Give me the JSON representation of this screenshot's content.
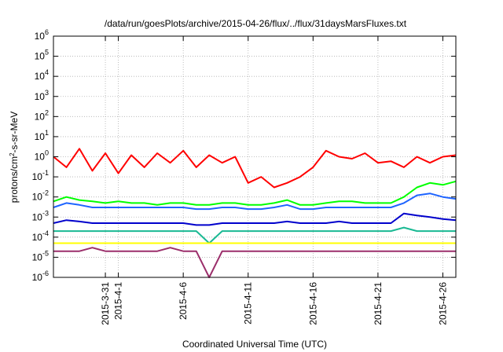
{
  "chart_data": {
    "type": "line",
    "title": "/data/run/goesPlots/archive/2015-04-26/flux/../flux/31daysMarsFluxes.txt",
    "xlabel": "Coordinated Universal Time (UTC)",
    "ylabel": {
      "base": "protons/cm",
      "sup": "2",
      "rest": "-s-sr-MeV"
    },
    "xlim": [
      "2015-03-27",
      "2015-04-27"
    ],
    "ylim": [
      1e-06,
      1000000.0
    ],
    "yscale": "log",
    "grid": true,
    "yticks": [
      {
        "base": "10",
        "exp": "6",
        "value": 1000000.0
      },
      {
        "base": "10",
        "exp": "5",
        "value": 100000.0
      },
      {
        "base": "10",
        "exp": "4",
        "value": 10000.0
      },
      {
        "base": "10",
        "exp": "3",
        "value": 1000.0
      },
      {
        "base": "10",
        "exp": "2",
        "value": 100.0
      },
      {
        "base": "10",
        "exp": "1",
        "value": 10.0
      },
      {
        "base": "10",
        "exp": "0",
        "value": 1.0
      },
      {
        "base": "10",
        "exp": "-1",
        "value": 0.1
      },
      {
        "base": "10",
        "exp": "-2",
        "value": 0.01
      },
      {
        "base": "10",
        "exp": "-3",
        "value": 0.001
      },
      {
        "base": "10",
        "exp": "-4",
        "value": 0.0001
      },
      {
        "base": "10",
        "exp": "-5",
        "value": 1e-05
      },
      {
        "base": "10",
        "exp": "-6",
        "value": 1e-06
      }
    ],
    "xticks": [
      {
        "date": "2015-03-31",
        "label": "2015-3-31"
      },
      {
        "date": "2015-04-01",
        "label": "2015-4-1"
      },
      {
        "date": "2015-04-06",
        "label": "2015-4-6"
      },
      {
        "date": "2015-04-11",
        "label": "2015-4-11"
      },
      {
        "date": "2015-04-16",
        "label": "2015-4-16"
      },
      {
        "date": "2015-04-21",
        "label": "2015-4-21"
      },
      {
        "date": "2015-04-26",
        "label": "2015-4-26"
      }
    ],
    "series": [
      {
        "color": "#ff0000",
        "x": [
          "2015-03-27",
          "2015-03-28",
          "2015-03-29",
          "2015-03-30",
          "2015-03-31",
          "2015-04-01",
          "2015-04-02",
          "2015-04-03",
          "2015-04-04",
          "2015-04-05",
          "2015-04-06",
          "2015-04-07",
          "2015-04-08",
          "2015-04-09",
          "2015-04-10",
          "2015-04-11",
          "2015-04-12",
          "2015-04-13",
          "2015-04-14",
          "2015-04-15",
          "2015-04-16",
          "2015-04-17",
          "2015-04-18",
          "2015-04-19",
          "2015-04-20",
          "2015-04-21",
          "2015-04-22",
          "2015-04-23",
          "2015-04-24",
          "2015-04-25",
          "2015-04-26",
          "2015-04-27"
        ],
        "y": [
          1.0,
          0.3,
          2.5,
          0.2,
          1.5,
          0.15,
          1.2,
          0.3,
          1.5,
          0.5,
          2.0,
          0.3,
          1.2,
          0.5,
          1.0,
          0.05,
          0.1,
          0.03,
          0.05,
          0.1,
          0.3,
          2.0,
          1.0,
          0.8,
          1.5,
          0.5,
          0.6,
          0.3,
          1.0,
          0.5,
          1.0,
          1.2
        ]
      },
      {
        "color": "#00ff00",
        "x": [
          "2015-03-27",
          "2015-03-28",
          "2015-03-29",
          "2015-03-30",
          "2015-03-31",
          "2015-04-01",
          "2015-04-02",
          "2015-04-03",
          "2015-04-04",
          "2015-04-05",
          "2015-04-06",
          "2015-04-07",
          "2015-04-08",
          "2015-04-09",
          "2015-04-10",
          "2015-04-11",
          "2015-04-12",
          "2015-04-13",
          "2015-04-14",
          "2015-04-15",
          "2015-04-16",
          "2015-04-17",
          "2015-04-18",
          "2015-04-19",
          "2015-04-20",
          "2015-04-21",
          "2015-04-22",
          "2015-04-23",
          "2015-04-24",
          "2015-04-25",
          "2015-04-26",
          "2015-04-27"
        ],
        "y": [
          0.006,
          0.01,
          0.007,
          0.006,
          0.005,
          0.006,
          0.005,
          0.005,
          0.004,
          0.005,
          0.005,
          0.004,
          0.004,
          0.005,
          0.005,
          0.004,
          0.004,
          0.005,
          0.007,
          0.004,
          0.004,
          0.005,
          0.006,
          0.006,
          0.005,
          0.005,
          0.005,
          0.01,
          0.03,
          0.05,
          0.04,
          0.06
        ]
      },
      {
        "color": "#1e64ff",
        "x": [
          "2015-03-27",
          "2015-03-28",
          "2015-03-29",
          "2015-03-30",
          "2015-03-31",
          "2015-04-01",
          "2015-04-02",
          "2015-04-03",
          "2015-04-04",
          "2015-04-05",
          "2015-04-06",
          "2015-04-07",
          "2015-04-08",
          "2015-04-09",
          "2015-04-10",
          "2015-04-11",
          "2015-04-12",
          "2015-04-13",
          "2015-04-14",
          "2015-04-15",
          "2015-04-16",
          "2015-04-17",
          "2015-04-18",
          "2015-04-19",
          "2015-04-20",
          "2015-04-21",
          "2015-04-22",
          "2015-04-23",
          "2015-04-24",
          "2015-04-25",
          "2015-04-26",
          "2015-04-27"
        ],
        "y": [
          0.003,
          0.005,
          0.004,
          0.003,
          0.003,
          0.003,
          0.003,
          0.003,
          0.003,
          0.003,
          0.003,
          0.0025,
          0.0025,
          0.003,
          0.003,
          0.0025,
          0.0025,
          0.003,
          0.004,
          0.0025,
          0.0025,
          0.003,
          0.003,
          0.003,
          0.003,
          0.003,
          0.003,
          0.005,
          0.012,
          0.015,
          0.01,
          0.008
        ]
      },
      {
        "color": "#0000cc",
        "x": [
          "2015-03-27",
          "2015-03-28",
          "2015-03-29",
          "2015-03-30",
          "2015-03-31",
          "2015-04-01",
          "2015-04-02",
          "2015-04-03",
          "2015-04-04",
          "2015-04-05",
          "2015-04-06",
          "2015-04-07",
          "2015-04-08",
          "2015-04-09",
          "2015-04-10",
          "2015-04-11",
          "2015-04-12",
          "2015-04-13",
          "2015-04-14",
          "2015-04-15",
          "2015-04-16",
          "2015-04-17",
          "2015-04-18",
          "2015-04-19",
          "2015-04-20",
          "2015-04-21",
          "2015-04-22",
          "2015-04-23",
          "2015-04-24",
          "2015-04-25",
          "2015-04-26",
          "2015-04-27"
        ],
        "y": [
          0.0005,
          0.0007,
          0.0006,
          0.0005,
          0.0005,
          0.0005,
          0.0005,
          0.0005,
          0.0005,
          0.0005,
          0.0005,
          0.0004,
          0.0004,
          0.0005,
          0.0005,
          0.0005,
          0.0005,
          0.0005,
          0.0006,
          0.0005,
          0.0005,
          0.0005,
          0.0006,
          0.0005,
          0.0005,
          0.0005,
          0.0005,
          0.0015,
          0.0012,
          0.001,
          0.0008,
          0.0007
        ]
      },
      {
        "color": "#1ab993",
        "x": [
          "2015-03-27",
          "2015-03-28",
          "2015-03-29",
          "2015-03-30",
          "2015-03-31",
          "2015-04-01",
          "2015-04-02",
          "2015-04-03",
          "2015-04-04",
          "2015-04-05",
          "2015-04-06",
          "2015-04-07",
          "2015-04-08",
          "2015-04-09",
          "2015-04-10",
          "2015-04-11",
          "2015-04-12",
          "2015-04-13",
          "2015-04-14",
          "2015-04-15",
          "2015-04-16",
          "2015-04-17",
          "2015-04-18",
          "2015-04-19",
          "2015-04-20",
          "2015-04-21",
          "2015-04-22",
          "2015-04-23",
          "2015-04-24",
          "2015-04-25",
          "2015-04-26",
          "2015-04-27"
        ],
        "y": [
          0.0002,
          0.0002,
          0.0002,
          0.0002,
          0.0002,
          0.0002,
          0.0002,
          0.0002,
          0.0002,
          0.0002,
          0.0002,
          0.0002,
          5e-05,
          0.0002,
          0.0002,
          0.0002,
          0.0002,
          0.0002,
          0.0002,
          0.0002,
          0.0002,
          0.0002,
          0.0002,
          0.0002,
          0.0002,
          0.0002,
          0.0002,
          0.0003,
          0.0002,
          0.0002,
          0.0002,
          0.0002
        ]
      },
      {
        "color": "#ffff00",
        "x": [
          "2015-03-27",
          "2015-03-28",
          "2015-03-29",
          "2015-03-30",
          "2015-03-31",
          "2015-04-01",
          "2015-04-02",
          "2015-04-03",
          "2015-04-04",
          "2015-04-05",
          "2015-04-06",
          "2015-04-07",
          "2015-04-08",
          "2015-04-09",
          "2015-04-10",
          "2015-04-11",
          "2015-04-12",
          "2015-04-13",
          "2015-04-14",
          "2015-04-15",
          "2015-04-16",
          "2015-04-17",
          "2015-04-18",
          "2015-04-19",
          "2015-04-20",
          "2015-04-21",
          "2015-04-22",
          "2015-04-23",
          "2015-04-24",
          "2015-04-25",
          "2015-04-26",
          "2015-04-27"
        ],
        "y": [
          5e-05,
          5e-05,
          5e-05,
          5e-05,
          5e-05,
          5e-05,
          5e-05,
          5e-05,
          5e-05,
          5e-05,
          5e-05,
          5e-05,
          5e-05,
          5e-05,
          5e-05,
          5e-05,
          5e-05,
          5e-05,
          5e-05,
          5e-05,
          5e-05,
          5e-05,
          5e-05,
          5e-05,
          5e-05,
          5e-05,
          5e-05,
          5e-05,
          5e-05,
          5e-05,
          5e-05,
          5e-05
        ]
      },
      {
        "color": "#9b2f6b",
        "x": [
          "2015-03-27",
          "2015-03-28",
          "2015-03-29",
          "2015-03-30",
          "2015-03-31",
          "2015-04-01",
          "2015-04-02",
          "2015-04-03",
          "2015-04-04",
          "2015-04-05",
          "2015-04-06",
          "2015-04-07",
          "2015-04-08",
          "2015-04-09",
          "2015-04-10",
          "2015-04-11",
          "2015-04-12",
          "2015-04-13",
          "2015-04-14",
          "2015-04-15",
          "2015-04-16",
          "2015-04-17",
          "2015-04-18",
          "2015-04-19",
          "2015-04-20",
          "2015-04-21",
          "2015-04-22",
          "2015-04-23",
          "2015-04-24",
          "2015-04-25",
          "2015-04-26",
          "2015-04-27"
        ],
        "y": [
          2e-05,
          2e-05,
          2e-05,
          3e-05,
          2e-05,
          2e-05,
          2e-05,
          2e-05,
          2e-05,
          3e-05,
          2e-05,
          2e-05,
          1e-06,
          2e-05,
          2e-05,
          2e-05,
          2e-05,
          2e-05,
          2e-05,
          2e-05,
          2e-05,
          2e-05,
          2e-05,
          2e-05,
          2e-05,
          2e-05,
          2e-05,
          2e-05,
          2e-05,
          2e-05,
          2e-05,
          2e-05
        ]
      }
    ]
  }
}
